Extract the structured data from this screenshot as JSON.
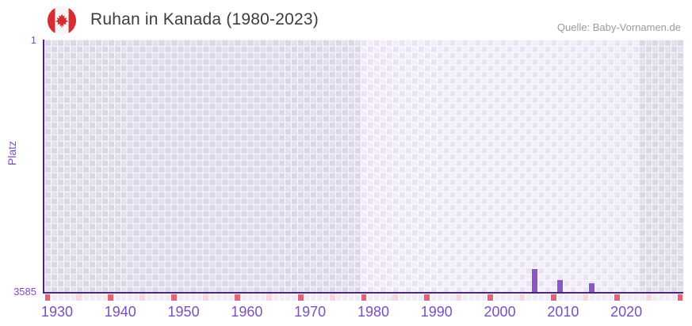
{
  "header": {
    "title": "Ruhan in Kanada (1980-2023)",
    "source": "Quelle: Baby-Vornamen.de",
    "flag": "canada-flag-icon"
  },
  "chart_data": {
    "type": "bar",
    "title": "Ruhan in Kanada (1980-2023)",
    "xlabel": "",
    "ylabel": "Platz",
    "y_axis": {
      "min": 1,
      "max": 3585,
      "inverted": true,
      "top_tick": "1",
      "bottom_tick": "3585"
    },
    "x_axis": {
      "min": 1928,
      "max": 2029,
      "tick_years": [
        1930,
        1940,
        1950,
        1960,
        1970,
        1980,
        1990,
        2000,
        2010,
        2020
      ]
    },
    "series": [
      {
        "name": "Platz",
        "points": [
          {
            "year": 2005,
            "rank": 3250
          },
          {
            "year": 2009,
            "rank": 3410
          },
          {
            "year": 2014,
            "rank": 3445
          }
        ]
      }
    ],
    "highlight_band": {
      "from": 1978,
      "to": 2022
    },
    "no_data_marks": {
      "years_start": 1928,
      "years_end": 2028,
      "step": 5,
      "dark_every": 10
    },
    "legend": false,
    "grid": "checkerboard"
  },
  "colors": {
    "bar": "#8c55c8",
    "axis_line": "#4d2486",
    "tick_text": "#7a4fc0",
    "title_text": "#3d3d3d",
    "source_text": "#9b9b9b",
    "mark_dark": "#e26470",
    "mark_light": "#f7d7de",
    "flag_red": "#d62d33"
  }
}
